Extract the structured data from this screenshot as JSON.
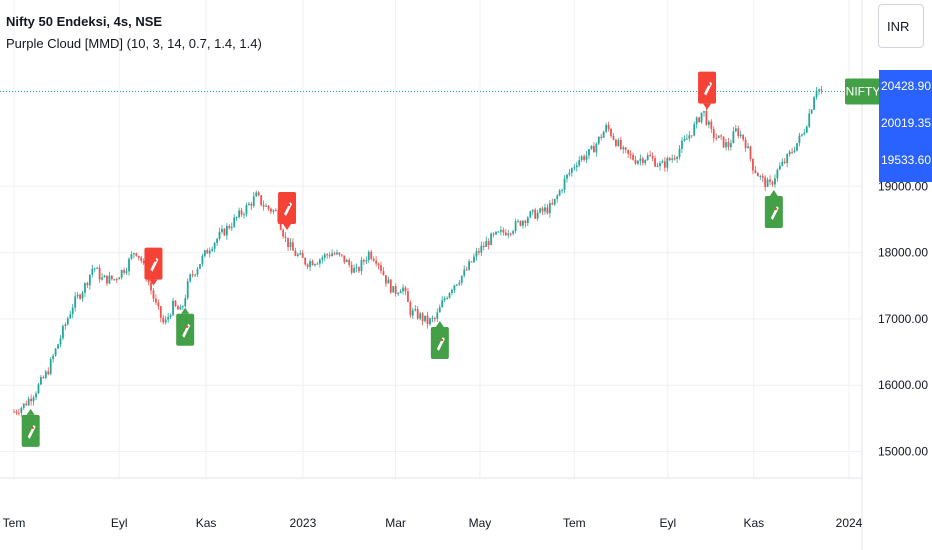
{
  "header": {
    "symbol": "Nifty 50 Endeksi, 4s, NSE",
    "indicator": "Purple Cloud [MMD] (10, 3, 14, 0.7, 1.4, 1.4)"
  },
  "currency": "INR",
  "colors": {
    "up": "#26a69a",
    "down": "#ef5350",
    "buy_marker": "#43a047",
    "sell_marker": "#f44336",
    "price_label": "#2962ff",
    "symbol_label": "#43a047",
    "grid": "#eef0f3"
  },
  "chart_data": {
    "type": "candlestick",
    "y_axis_ticks": [
      15000,
      16000,
      17000,
      18000,
      19000
    ],
    "y_tick_labels": [
      "15000.00",
      "16000.00",
      "17000.00",
      "18000.00",
      "19000.00"
    ],
    "ylim": [
      14600,
      20600
    ],
    "x_ticks": [
      {
        "label": "Tem",
        "t": 0
      },
      {
        "label": "Eyl",
        "t": 0.126
      },
      {
        "label": "Kas",
        "t": 0.23
      },
      {
        "label": "2023",
        "t": 0.346
      },
      {
        "label": "Mar",
        "t": 0.457
      },
      {
        "label": "May",
        "t": 0.558
      },
      {
        "label": "Tem",
        "t": 0.671
      },
      {
        "label": "Eyl",
        "t": 0.783
      },
      {
        "label": "Kas",
        "t": 0.886
      },
      {
        "label": "2024",
        "t": 1.0
      }
    ],
    "price_path": [
      [
        0,
        15600
      ],
      [
        0.012,
        15700
      ],
      [
        0.025,
        15900
      ],
      [
        0.04,
        16200
      ],
      [
        0.055,
        16700
      ],
      [
        0.07,
        17200
      ],
      [
        0.085,
        17500
      ],
      [
        0.095,
        17800
      ],
      [
        0.105,
        17600
      ],
      [
        0.12,
        17600
      ],
      [
        0.135,
        17800
      ],
      [
        0.145,
        18050
      ],
      [
        0.152,
        17900
      ],
      [
        0.16,
        17600
      ],
      [
        0.17,
        17200
      ],
      [
        0.18,
        16900
      ],
      [
        0.19,
        17200
      ],
      [
        0.2,
        17100
      ],
      [
        0.21,
        17600
      ],
      [
        0.22,
        17800
      ],
      [
        0.235,
        18100
      ],
      [
        0.25,
        18300
      ],
      [
        0.265,
        18500
      ],
      [
        0.28,
        18700
      ],
      [
        0.29,
        18850
      ],
      [
        0.3,
        18700
      ],
      [
        0.315,
        18600
      ],
      [
        0.325,
        18200
      ],
      [
        0.335,
        18000
      ],
      [
        0.35,
        17850
      ],
      [
        0.365,
        17900
      ],
      [
        0.38,
        18000
      ],
      [
        0.395,
        17900
      ],
      [
        0.41,
        17700
      ],
      [
        0.425,
        18000
      ],
      [
        0.435,
        17900
      ],
      [
        0.445,
        17600
      ],
      [
        0.455,
        17400
      ],
      [
        0.465,
        17500
      ],
      [
        0.475,
        17100
      ],
      [
        0.485,
        17050
      ],
      [
        0.495,
        16950
      ],
      [
        0.505,
        17000
      ],
      [
        0.515,
        17300
      ],
      [
        0.525,
        17500
      ],
      [
        0.54,
        17700
      ],
      [
        0.555,
        18000
      ],
      [
        0.57,
        18200
      ],
      [
        0.585,
        18300
      ],
      [
        0.6,
        18400
      ],
      [
        0.615,
        18550
      ],
      [
        0.63,
        18600
      ],
      [
        0.645,
        18700
      ],
      [
        0.66,
        19100
      ],
      [
        0.675,
        19400
      ],
      [
        0.69,
        19500
      ],
      [
        0.7,
        19700
      ],
      [
        0.71,
        19900
      ],
      [
        0.72,
        19700
      ],
      [
        0.73,
        19500
      ],
      [
        0.745,
        19400
      ],
      [
        0.76,
        19450
      ],
      [
        0.775,
        19300
      ],
      [
        0.79,
        19450
      ],
      [
        0.805,
        19700
      ],
      [
        0.815,
        19900
      ],
      [
        0.825,
        20150
      ],
      [
        0.835,
        19800
      ],
      [
        0.845,
        19700
      ],
      [
        0.855,
        19600
      ],
      [
        0.865,
        19850
      ],
      [
        0.875,
        19700
      ],
      [
        0.885,
        19300
      ],
      [
        0.895,
        19100
      ],
      [
        0.905,
        19000
      ],
      [
        0.915,
        19250
      ],
      [
        0.925,
        19400
      ],
      [
        0.935,
        19600
      ],
      [
        0.945,
        19800
      ],
      [
        0.955,
        20200
      ],
      [
        0.96,
        20500
      ],
      [
        0.967,
        20430
      ]
    ],
    "signals": [
      {
        "type": "buy",
        "t": 0.02
      },
      {
        "type": "sell",
        "t": 0.167
      },
      {
        "type": "buy",
        "t": 0.205
      },
      {
        "type": "sell",
        "t": 0.327
      },
      {
        "type": "buy",
        "t": 0.51
      },
      {
        "type": "sell",
        "t": 0.83
      },
      {
        "type": "buy",
        "t": 0.91
      }
    ],
    "price_labels": [
      {
        "text": "20428.90",
        "value": 20428.9
      },
      {
        "text": "20019.35",
        "value": 20019.35
      },
      {
        "text": "19533.60",
        "value": 19533.6
      }
    ],
    "last_price": 20430,
    "symbol_tag": "NIFTY"
  }
}
